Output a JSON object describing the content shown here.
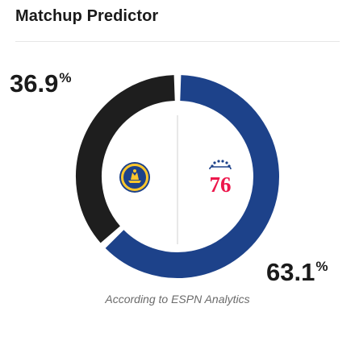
{
  "widget": {
    "title": "Matchup Predictor",
    "caption": "According to ESPN Analytics"
  },
  "teams": {
    "left": {
      "name": "Golden State Warriors",
      "percent": "36.9",
      "percent_symbol": "%",
      "color": "#1e1e1e",
      "logo": "warriors-logo"
    },
    "right": {
      "name": "Philadelphia 76ers",
      "percent": "63.1",
      "percent_symbol": "%",
      "color": "#1d428a",
      "logo": "76ers-logo",
      "logo_text": "76"
    }
  },
  "chart_data": {
    "type": "pie",
    "values": [
      36.9,
      63.1
    ],
    "colors": [
      "#1e1e1e",
      "#1d428a"
    ]
  }
}
